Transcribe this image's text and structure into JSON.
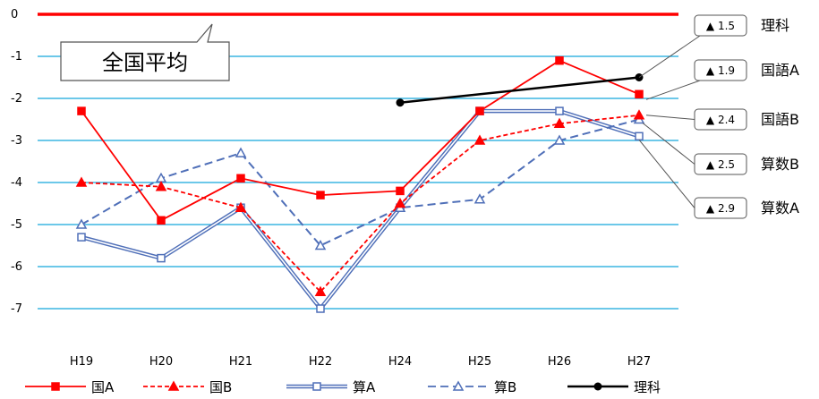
{
  "chart_data": {
    "type": "line",
    "categories": [
      "H19",
      "H20",
      "H21",
      "H22",
      "H24",
      "H25",
      "H26",
      "H27"
    ],
    "ylim": [
      -7,
      0
    ],
    "yticks": [
      "0",
      "-1",
      "-2",
      "-3",
      "-4",
      "-5",
      "-6",
      "-7"
    ],
    "grid": true,
    "legend_position": "bottom",
    "reference_line": {
      "value": 0,
      "label": "全国平均",
      "color": "#ff0000"
    },
    "series": [
      {
        "name": "国A",
        "color": "#ff0000",
        "style": "solid-square",
        "values": [
          -2.3,
          -4.9,
          -3.9,
          -4.3,
          -4.2,
          -2.3,
          -1.1,
          -1.9
        ]
      },
      {
        "name": "国B",
        "color": "#ff0000",
        "style": "dashed-triangle",
        "values": [
          -4.0,
          -4.1,
          -4.6,
          -6.6,
          -4.5,
          -3.0,
          -2.6,
          -2.4
        ]
      },
      {
        "name": "算A",
        "color": "#4f6fb8",
        "style": "double-square",
        "values": [
          -5.3,
          -5.8,
          -4.6,
          -7.0,
          -4.6,
          -2.3,
          -2.3,
          -2.9
        ]
      },
      {
        "name": "算B",
        "color": "#4f6fb8",
        "style": "dashed-triangle",
        "values": [
          -5.0,
          -3.9,
          -3.3,
          -5.5,
          -4.6,
          -4.4,
          -3.0,
          -2.5
        ]
      },
      {
        "name": "理科",
        "color": "#000000",
        "style": "solid-circle",
        "values": [
          null,
          null,
          null,
          null,
          -2.1,
          null,
          null,
          -1.5
        ]
      }
    ],
    "callouts": [
      {
        "value": "▲ 1.5",
        "subject": "理科"
      },
      {
        "value": "▲ 1.9",
        "subject": "国語A"
      },
      {
        "value": "▲ 2.4",
        "subject": "国語B"
      },
      {
        "value": "▲ 2.5",
        "subject": "算数B"
      },
      {
        "value": "▲ 2.9",
        "subject": "算数A"
      }
    ]
  }
}
